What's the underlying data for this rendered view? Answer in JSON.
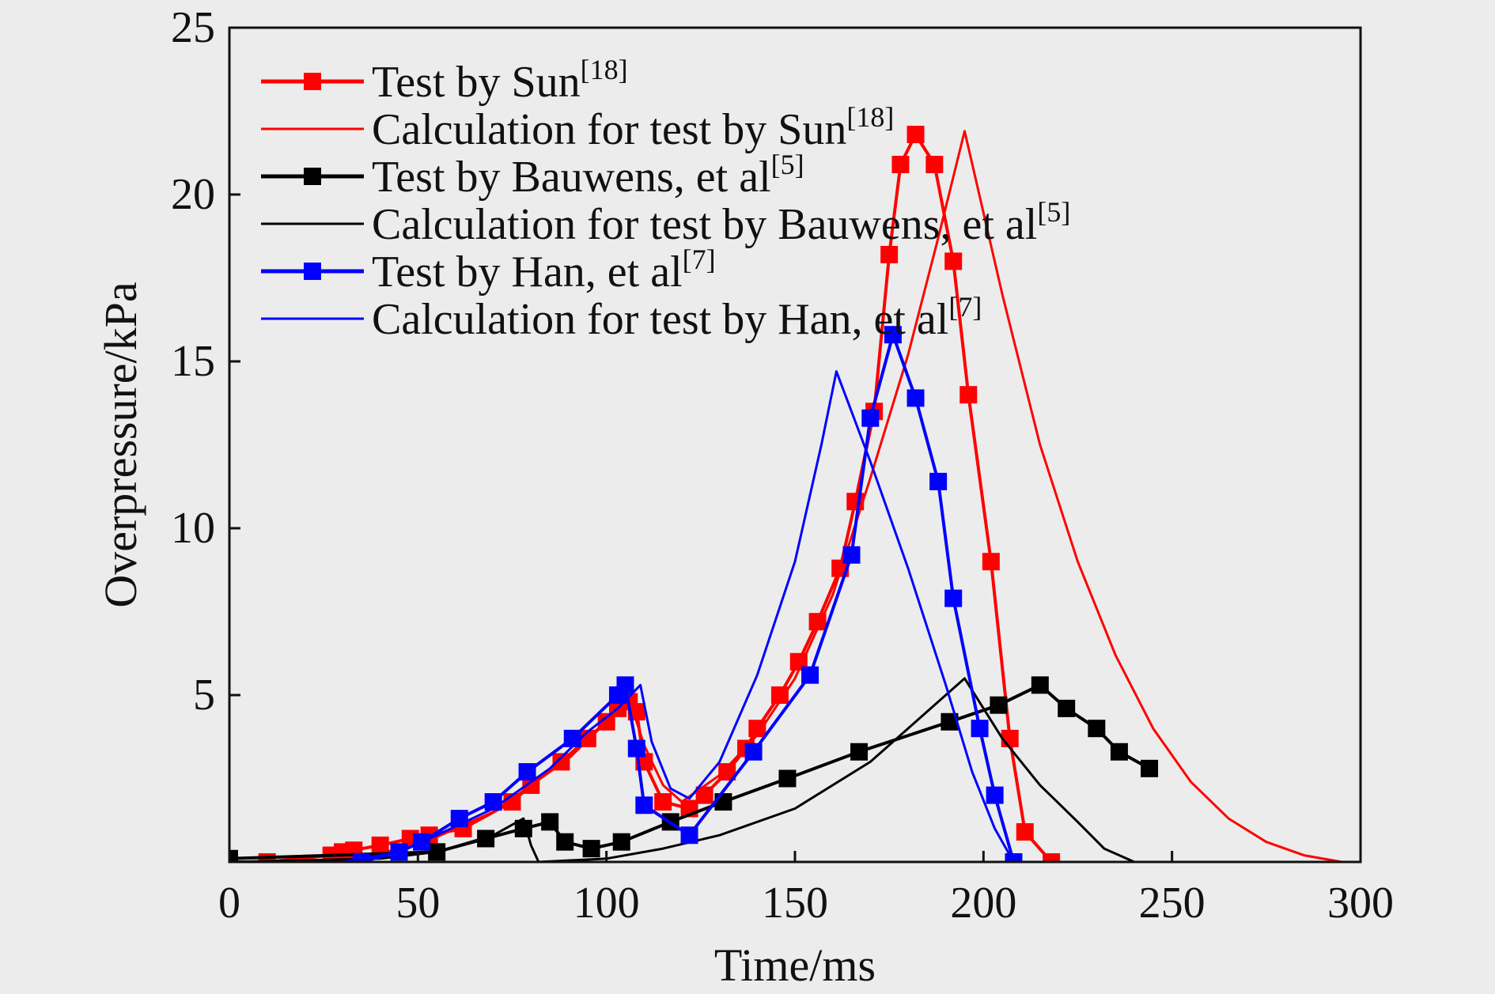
{
  "chart_data": {
    "type": "line",
    "title": "",
    "xlabel": "Time/ms",
    "ylabel": "Overpressure/kPa",
    "xlim": [
      0,
      300
    ],
    "ylim": [
      0,
      25
    ],
    "xticks": [
      0,
      50,
      100,
      150,
      200,
      250,
      300
    ],
    "yticks": [
      5,
      10,
      15,
      20,
      25
    ],
    "xtick_labels": [
      "0",
      "50",
      "100",
      "150",
      "200",
      "250",
      "300"
    ],
    "ytick_labels": [
      "5",
      "10",
      "15",
      "20",
      "25"
    ],
    "grid": false,
    "legend_position": "top-left",
    "series": [
      {
        "label": "Test by Sun",
        "ref": "[18]",
        "color": "#ff0000",
        "markers": true,
        "points": [
          [
            0,
            0.0
          ],
          [
            10,
            0.0
          ],
          [
            27,
            0.2
          ],
          [
            30,
            0.3
          ],
          [
            33,
            0.35
          ],
          [
            40,
            0.5
          ],
          [
            48,
            0.7
          ],
          [
            53,
            0.8
          ],
          [
            62,
            1.0
          ],
          [
            75,
            1.8
          ],
          [
            80,
            2.3
          ],
          [
            88,
            3.0
          ],
          [
            95,
            3.7
          ],
          [
            100,
            4.2
          ],
          [
            103,
            4.6
          ],
          [
            106,
            4.8
          ],
          [
            108,
            4.5
          ],
          [
            110,
            3.0
          ],
          [
            115,
            1.8
          ],
          [
            122,
            1.6
          ],
          [
            126,
            2.0
          ],
          [
            132,
            2.7
          ],
          [
            137,
            3.4
          ],
          [
            140,
            4.0
          ],
          [
            146,
            5.0
          ],
          [
            151,
            6.0
          ],
          [
            156,
            7.2
          ],
          [
            162,
            8.8
          ],
          [
            166,
            10.8
          ],
          [
            171,
            13.5
          ],
          [
            175,
            18.2
          ],
          [
            178,
            20.9
          ],
          [
            182,
            21.8
          ],
          [
            187,
            20.9
          ],
          [
            192,
            18.0
          ],
          [
            196,
            14.0
          ],
          [
            202,
            9.0
          ],
          [
            207,
            3.7
          ],
          [
            211,
            0.9
          ],
          [
            218,
            0.0
          ]
        ]
      },
      {
        "label": "Calculation for test by Sun",
        "ref": "[18]",
        "color": "#ff0000",
        "markers": false,
        "points": [
          [
            0,
            0.0
          ],
          [
            30,
            0.05
          ],
          [
            50,
            0.5
          ],
          [
            70,
            1.5
          ],
          [
            90,
            3.1
          ],
          [
            100,
            4.2
          ],
          [
            106,
            4.9
          ],
          [
            110,
            3.5
          ],
          [
            115,
            2.3
          ],
          [
            120,
            1.8
          ],
          [
            130,
            2.6
          ],
          [
            140,
            3.8
          ],
          [
            150,
            5.5
          ],
          [
            160,
            8.0
          ],
          [
            170,
            11.5
          ],
          [
            180,
            15.2
          ],
          [
            188,
            18.7
          ],
          [
            195,
            21.9
          ],
          [
            205,
            17.0
          ],
          [
            215,
            12.5
          ],
          [
            225,
            9.0
          ],
          [
            235,
            6.2
          ],
          [
            245,
            4.0
          ],
          [
            255,
            2.4
          ],
          [
            265,
            1.3
          ],
          [
            275,
            0.6
          ],
          [
            285,
            0.2
          ],
          [
            295,
            0.0
          ]
        ]
      },
      {
        "label": "Test by Bauwens, et al",
        "ref": "[5]",
        "color": "#000000",
        "markers": true,
        "points": [
          [
            0,
            0.1
          ],
          [
            55,
            0.3
          ],
          [
            68,
            0.7
          ],
          [
            78,
            1.0
          ],
          [
            85,
            1.2
          ],
          [
            89,
            0.6
          ],
          [
            96,
            0.4
          ],
          [
            104,
            0.6
          ],
          [
            117,
            1.2
          ],
          [
            131,
            1.8
          ],
          [
            148,
            2.5
          ],
          [
            167,
            3.3
          ],
          [
            191,
            4.2
          ],
          [
            204,
            4.7
          ],
          [
            215,
            5.3
          ],
          [
            222,
            4.6
          ],
          [
            230,
            4.0
          ],
          [
            236,
            3.3
          ],
          [
            244,
            2.8
          ]
        ]
      },
      {
        "label": "Calculation for test by Bauwens, et al",
        "ref": "[5]",
        "color": "#000000",
        "markers": false,
        "points": [
          [
            0,
            0.0
          ],
          [
            40,
            0.1
          ],
          [
            55,
            0.3
          ],
          [
            70,
            0.8
          ],
          [
            78,
            1.3
          ],
          [
            80,
            0.5
          ],
          [
            82,
            0.0
          ],
          [
            100,
            0.1
          ],
          [
            115,
            0.4
          ],
          [
            130,
            0.8
          ],
          [
            150,
            1.6
          ],
          [
            170,
            3.0
          ],
          [
            185,
            4.5
          ],
          [
            195,
            5.5
          ],
          [
            205,
            3.7
          ],
          [
            215,
            2.3
          ],
          [
            225,
            1.2
          ],
          [
            232,
            0.4
          ],
          [
            240,
            0.0
          ]
        ]
      },
      {
        "label": "Test by Han, et al",
        "ref": "[7]",
        "color": "#0000ff",
        "markers": true,
        "points": [
          [
            35,
            0.0
          ],
          [
            45,
            0.3
          ],
          [
            51,
            0.6
          ],
          [
            61,
            1.3
          ],
          [
            70,
            1.8
          ],
          [
            79,
            2.7
          ],
          [
            91,
            3.7
          ],
          [
            103,
            5.0
          ],
          [
            105,
            5.3
          ],
          [
            108,
            3.4
          ],
          [
            110,
            1.7
          ],
          [
            122,
            0.8
          ],
          [
            139,
            3.3
          ],
          [
            154,
            5.6
          ],
          [
            165,
            9.2
          ],
          [
            170,
            13.3
          ],
          [
            176,
            15.8
          ],
          [
            182,
            13.9
          ],
          [
            188,
            11.4
          ],
          [
            192,
            7.9
          ],
          [
            199,
            4.0
          ],
          [
            203,
            2.0
          ],
          [
            208,
            0.0
          ]
        ]
      },
      {
        "label": "Calculation for test by Han, et al",
        "ref": "[7]",
        "color": "#0000ff",
        "markers": false,
        "points": [
          [
            30,
            0.0
          ],
          [
            45,
            0.3
          ],
          [
            55,
            0.8
          ],
          [
            70,
            1.6
          ],
          [
            85,
            2.8
          ],
          [
            95,
            3.9
          ],
          [
            103,
            4.6
          ],
          [
            109,
            5.3
          ],
          [
            112,
            3.6
          ],
          [
            117,
            2.2
          ],
          [
            122,
            1.9
          ],
          [
            130,
            3.0
          ],
          [
            140,
            5.6
          ],
          [
            150,
            9.0
          ],
          [
            157,
            12.5
          ],
          [
            161,
            14.7
          ],
          [
            170,
            12.0
          ],
          [
            180,
            8.8
          ],
          [
            190,
            5.3
          ],
          [
            197,
            2.7
          ],
          [
            203,
            1.0
          ],
          [
            208,
            0.0
          ]
        ]
      }
    ]
  }
}
